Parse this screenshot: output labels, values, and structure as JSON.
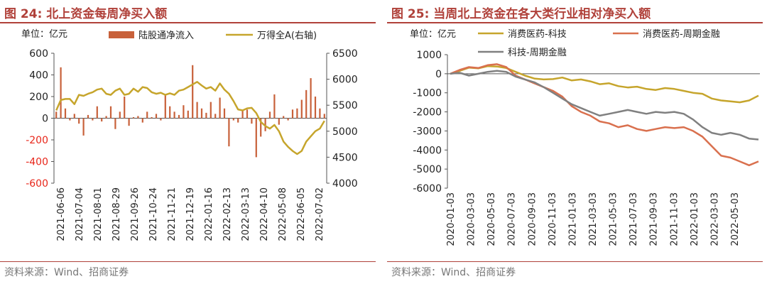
{
  "left": {
    "title": "图 24:  北上资金每周净买入额",
    "source": "资料来源：Wind、招商证券",
    "chart_data": {
      "type": "bar+line",
      "unit_label": "单位：亿元",
      "legend_position": "top",
      "grid": false,
      "left_axis": {
        "ylim": [
          -600,
          600
        ],
        "ticks": [
          -600,
          -400,
          -200,
          0,
          200,
          400,
          600
        ],
        "tick_color": "#e8261a"
      },
      "right_axis": {
        "ylim": [
          4000,
          6500
        ],
        "ticks": [
          4000,
          4500,
          5000,
          5500,
          6000,
          6500
        ]
      },
      "x_ticks": [
        "2021-06-06",
        "2021-07-04",
        "2021-08-01",
        "2021-08-29",
        "2021-09-26",
        "2021-10-24",
        "2021-11-21",
        "2021-12-19",
        "2022-01-16",
        "2022-02-13",
        "2022-03-13",
        "2022-04-10",
        "2022-05-08",
        "2022-06-05",
        "2022-07-02"
      ],
      "series": [
        {
          "name": "陆股通净流入",
          "type": "bar",
          "axis": "left",
          "color": "#c8613a",
          "values": [
            60,
            470,
            90,
            -20,
            40,
            -50,
            -160,
            30,
            -20,
            110,
            -30,
            20,
            110,
            -100,
            60,
            200,
            -70,
            10,
            20,
            -40,
            60,
            10,
            40,
            -20,
            210,
            110,
            60,
            30,
            120,
            70,
            490,
            150,
            90,
            50,
            150,
            40,
            190,
            90,
            -260,
            -20,
            -40,
            70,
            80,
            -50,
            -360,
            -170,
            -120,
            60,
            220,
            -60,
            20,
            -20,
            80,
            90,
            170,
            260,
            370,
            200,
            90,
            40
          ]
        },
        {
          "name": "万得全A(右轴)",
          "type": "line",
          "axis": "right",
          "color": "#c6a52c",
          "values": [
            5400,
            5600,
            5620,
            5620,
            5520,
            5700,
            5680,
            5720,
            5750,
            5800,
            5820,
            5720,
            5700,
            5780,
            5820,
            5700,
            5720,
            5820,
            5760,
            5850,
            5830,
            5750,
            5720,
            5740,
            5700,
            5730,
            5700,
            5780,
            5800,
            5850,
            5900,
            5950,
            5880,
            5820,
            5850,
            5780,
            5920,
            5800,
            5720,
            5580,
            5420,
            5400,
            5440,
            5450,
            5350,
            5180,
            5100,
            5050,
            5120,
            5000,
            4800,
            4700,
            4620,
            4560,
            4620,
            4800,
            4900,
            5000,
            5050,
            5200
          ]
        }
      ]
    }
  },
  "right": {
    "title": "图 25:  当周北上资金在各大类行业相对净买入额",
    "source": "资料来源：Wind、招商证券",
    "chart_data": {
      "type": "line",
      "unit_label": "单位：亿元",
      "legend_position": "top",
      "grid": false,
      "ylim": [
        -6000,
        1000
      ],
      "y_ticks": [
        -6000,
        -5000,
        -4000,
        -3000,
        -2000,
        -1000,
        0,
        1000
      ],
      "x_ticks": [
        "2020-01-03",
        "2020-03-03",
        "2020-05-03",
        "2020-07-03",
        "2020-09-03",
        "2020-11-03",
        "2021-01-03",
        "2021-03-03",
        "2021-05-03",
        "2021-07-03",
        "2021-09-03",
        "2021-11-03",
        "2022-01-03",
        "2022-03-03",
        "2022-05-03"
      ],
      "series": [
        {
          "name": "消费医药-科技",
          "color": "#c6a52c",
          "values": [
            0,
            150,
            320,
            280,
            400,
            380,
            300,
            100,
            -100,
            -250,
            -300,
            -280,
            -200,
            -350,
            -300,
            -400,
            -550,
            -500,
            -650,
            -720,
            -680,
            -800,
            -850,
            -750,
            -800,
            -900,
            -1000,
            -1050,
            -1300,
            -1400,
            -1450,
            -1500,
            -1400,
            -1150
          ]
        },
        {
          "name": "消费医药-周期金融",
          "color": "#d9704e",
          "values": [
            0,
            200,
            350,
            300,
            450,
            500,
            350,
            -100,
            -300,
            -500,
            -700,
            -900,
            -1200,
            -1700,
            -2000,
            -2200,
            -2500,
            -2600,
            -2800,
            -2700,
            -2900,
            -3000,
            -2900,
            -2800,
            -2850,
            -2800,
            -3000,
            -3300,
            -3800,
            -4300,
            -4400,
            -4600,
            -4800,
            -4600
          ]
        },
        {
          "name": "科技-周期金融",
          "color": "#808080",
          "values": [
            0,
            50,
            -100,
            0,
            100,
            150,
            100,
            -150,
            -300,
            -450,
            -700,
            -1000,
            -1300,
            -1600,
            -1800,
            -2000,
            -2200,
            -2100,
            -2000,
            -1900,
            -2000,
            -2100,
            -2000,
            -2050,
            -2000,
            -2100,
            -2400,
            -2800,
            -3100,
            -3200,
            -3100,
            -3200,
            -3400,
            -3450
          ]
        }
      ]
    }
  }
}
